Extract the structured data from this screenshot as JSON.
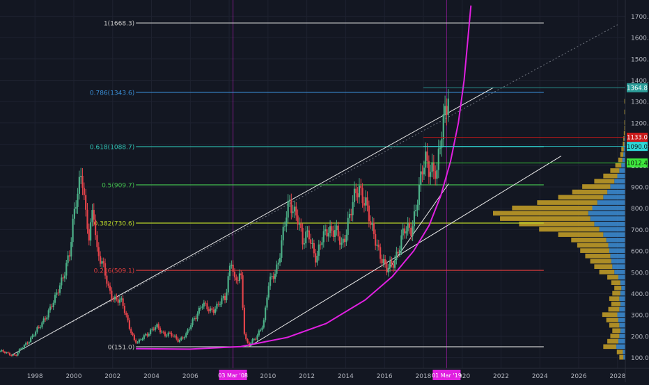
{
  "chart_data": {
    "type": "candlestick",
    "title": "",
    "x_ticks": [
      "1998",
      "2000",
      "2002",
      "2004",
      "2006",
      "2008",
      "2010",
      "2012",
      "2014",
      "2016",
      "2018",
      "2020",
      "2022",
      "2024",
      "2026",
      "2028"
    ],
    "y_ticks": [
      "100.0",
      "200.0",
      "300.0",
      "400.0",
      "500.0",
      "600.0",
      "700.0",
      "800.0",
      "900.0",
      "1000.0",
      "1100.0",
      "1200.0",
      "1300.0",
      "1400.0",
      "1500.0",
      "1600.0",
      "1700.0"
    ],
    "ylim": [
      50,
      1750
    ],
    "xlim": [
      1996.2,
      2028.4
    ],
    "price_series": [
      [
        1996.2,
        130
      ],
      [
        1996.6,
        118
      ],
      [
        1997.0,
        112
      ],
      [
        1997.4,
        150
      ],
      [
        1997.8,
        195
      ],
      [
        1998.2,
        235
      ],
      [
        1998.6,
        305
      ],
      [
        1999.0,
        360
      ],
      [
        1999.4,
        480
      ],
      [
        1999.8,
        580
      ],
      [
        2000.1,
        840
      ],
      [
        2000.4,
        1000
      ],
      [
        2000.6,
        760
      ],
      [
        2000.8,
        640
      ],
      [
        2001.0,
        830
      ],
      [
        2001.2,
        610
      ],
      [
        2001.5,
        520
      ],
      [
        2001.8,
        420
      ],
      [
        2002.1,
        380
      ],
      [
        2002.5,
        350
      ],
      [
        2002.8,
        270
      ],
      [
        2003.1,
        180
      ],
      [
        2003.3,
        165
      ],
      [
        2003.6,
        205
      ],
      [
        2004.0,
        225
      ],
      [
        2004.3,
        245
      ],
      [
        2004.7,
        210
      ],
      [
        2005.0,
        205
      ],
      [
        2005.4,
        185
      ],
      [
        2005.8,
        205
      ],
      [
        2006.2,
        290
      ],
      [
        2006.6,
        345
      ],
      [
        2007.0,
        325
      ],
      [
        2007.4,
        340
      ],
      [
        2007.8,
        380
      ],
      [
        2008.1,
        580
      ],
      [
        2008.3,
        440
      ],
      [
        2008.6,
        490
      ],
      [
        2008.8,
        200
      ],
      [
        2009.0,
        160
      ],
      [
        2009.4,
        190
      ],
      [
        2009.8,
        280
      ],
      [
        2010.0,
        430
      ],
      [
        2010.4,
        500
      ],
      [
        2010.8,
        700
      ],
      [
        2011.1,
        810
      ],
      [
        2011.5,
        790
      ],
      [
        2011.8,
        620
      ],
      [
        2012.1,
        690
      ],
      [
        2012.5,
        560
      ],
      [
        2012.8,
        650
      ],
      [
        2013.1,
        720
      ],
      [
        2013.5,
        680
      ],
      [
        2013.8,
        620
      ],
      [
        2014.1,
        740
      ],
      [
        2014.4,
        820
      ],
      [
        2014.7,
        900
      ],
      [
        2015.0,
        850
      ],
      [
        2015.3,
        700
      ],
      [
        2015.6,
        640
      ],
      [
        2015.9,
        560
      ],
      [
        2016.1,
        500
      ],
      [
        2016.4,
        540
      ],
      [
        2016.7,
        610
      ],
      [
        2017.0,
        680
      ],
      [
        2017.4,
        720
      ],
      [
        2017.8,
        880
      ],
      [
        2018.1,
        1040
      ],
      [
        2018.4,
        1000
      ],
      [
        2018.7,
        940
      ],
      [
        2018.9,
        1120
      ],
      [
        2019.1,
        1280
      ],
      [
        2019.3,
        1365
      ]
    ],
    "fib_levels": [
      {
        "ratio_label": "1(1668.3)",
        "value": 1668.3,
        "color": "#c8c8c8"
      },
      {
        "ratio_label": "0.786(1343.6)",
        "value": 1343.6,
        "color": "#3a8fd8"
      },
      {
        "ratio_label": "0.618(1088.7)",
        "value": 1088.7,
        "color": "#2fc8b8"
      },
      {
        "ratio_label": "0.5(909.7)",
        "value": 909.7,
        "color": "#43c04f"
      },
      {
        "ratio_label": "0.382(730.6)",
        "value": 730.6,
        "color": "#b8d42a"
      },
      {
        "ratio_label": "0.236(509.1)",
        "value": 509.1,
        "color": "#e03c3c"
      },
      {
        "ratio_label": "0(151.0)",
        "value": 151.0,
        "color": "#c8c8c8"
      }
    ],
    "trend_lines": [
      {
        "from": [
          1996.8,
          112
        ],
        "to": [
          2021.6,
          1365
        ],
        "color": "#e8e8e8",
        "style": "solid"
      },
      {
        "from": [
          2009.0,
          150
        ],
        "to": [
          2025.1,
          1045
        ],
        "color": "#e8e8e8",
        "style": "solid"
      },
      {
        "from": [
          2016.1,
          500
        ],
        "to": [
          2019.3,
          915
        ],
        "color": "#e8e8e8",
        "style": "solid"
      },
      {
        "from": [
          1996.8,
          112
        ],
        "to": [
          2028.0,
          1660
        ],
        "color": "#8a8e99",
        "style": "dotted"
      }
    ],
    "parabola": {
      "color": "#e020e0",
      "points": [
        [
          2003.2,
          142
        ],
        [
          2006.0,
          140
        ],
        [
          2008.6,
          152
        ],
        [
          2011.0,
          195
        ],
        [
          2013.0,
          260
        ],
        [
          2015.0,
          370
        ],
        [
          2016.4,
          480
        ],
        [
          2017.5,
          600
        ],
        [
          2018.3,
          720
        ],
        [
          2018.9,
          860
        ],
        [
          2019.4,
          1020
        ],
        [
          2019.8,
          1200
        ],
        [
          2020.1,
          1400
        ],
        [
          2020.3,
          1600
        ],
        [
          2020.45,
          1750
        ]
      ]
    },
    "vertical_markers": [
      {
        "x": 2008.2,
        "label": "03 Mar '08",
        "color": "#e020e0"
      },
      {
        "x": 2019.2,
        "label": "01 Mar '19",
        "color": "#e020e0"
      }
    ],
    "price_labels": [
      {
        "text": "1364.8",
        "value": 1364.8,
        "bg": "#2c9e9a",
        "fg": "#ffffff"
      },
      {
        "text": "1133.0",
        "value": 1133.0,
        "bg": "#c81a1a",
        "fg": "#ffffff"
      },
      {
        "text": "1090.0",
        "value": 1090.0,
        "bg": "#2fd8d8",
        "fg": "#0b1a1a"
      },
      {
        "text": "1012.4",
        "value": 1012.4,
        "bg": "#3ee83e",
        "fg": "#0b1a0b"
      }
    ],
    "volume_profile": {
      "bins": [
        {
          "price": 100,
          "up": 4,
          "down": 8
        },
        {
          "price": 125,
          "up": 5,
          "down": 12
        },
        {
          "price": 150,
          "up": 18,
          "down": 26
        },
        {
          "price": 175,
          "up": 14,
          "down": 22
        },
        {
          "price": 200,
          "up": 12,
          "down": 18
        },
        {
          "price": 225,
          "up": 10,
          "down": 16
        },
        {
          "price": 250,
          "up": 12,
          "down": 20
        },
        {
          "price": 275,
          "up": 14,
          "down": 24
        },
        {
          "price": 300,
          "up": 16,
          "down": 30
        },
        {
          "price": 325,
          "up": 12,
          "down": 22
        },
        {
          "price": 350,
          "up": 10,
          "down": 18
        },
        {
          "price": 375,
          "up": 12,
          "down": 20
        },
        {
          "price": 400,
          "up": 10,
          "down": 16
        },
        {
          "price": 425,
          "up": 8,
          "down": 14
        },
        {
          "price": 450,
          "up": 10,
          "down": 18
        },
        {
          "price": 475,
          "up": 14,
          "down": 22
        },
        {
          "price": 500,
          "up": 22,
          "down": 30
        },
        {
          "price": 525,
          "up": 26,
          "down": 36
        },
        {
          "price": 550,
          "up": 28,
          "down": 42
        },
        {
          "price": 575,
          "up": 30,
          "down": 50
        },
        {
          "price": 600,
          "up": 32,
          "down": 58
        },
        {
          "price": 625,
          "up": 34,
          "down": 62
        },
        {
          "price": 650,
          "up": 38,
          "down": 70
        },
        {
          "price": 675,
          "up": 44,
          "down": 90
        },
        {
          "price": 700,
          "up": 52,
          "down": 120
        },
        {
          "price": 725,
          "up": 62,
          "down": 150
        },
        {
          "price": 750,
          "up": 70,
          "down": 180
        },
        {
          "price": 775,
          "up": 74,
          "down": 190
        },
        {
          "price": 800,
          "up": 66,
          "down": 160
        },
        {
          "price": 825,
          "up": 56,
          "down": 120
        },
        {
          "price": 850,
          "up": 44,
          "down": 90
        },
        {
          "price": 875,
          "up": 36,
          "down": 70
        },
        {
          "price": 900,
          "up": 30,
          "down": 56
        },
        {
          "price": 925,
          "up": 22,
          "down": 40
        },
        {
          "price": 950,
          "up": 16,
          "down": 28
        },
        {
          "price": 975,
          "up": 12,
          "down": 18
        },
        {
          "price": 1000,
          "up": 8,
          "down": 12
        },
        {
          "price": 1025,
          "up": 6,
          "down": 8
        },
        {
          "price": 1050,
          "up": 4,
          "down": 6
        },
        {
          "price": 1075,
          "up": 3,
          "down": 5
        },
        {
          "price": 1100,
          "up": 2,
          "down": 3
        },
        {
          "price": 1125,
          "up": 2,
          "down": 2
        },
        {
          "price": 1150,
          "up": 1,
          "down": 2
        },
        {
          "price": 1175,
          "up": 1,
          "down": 1
        },
        {
          "price": 1200,
          "up": 1,
          "down": 1
        },
        {
          "price": 1250,
          "up": 1,
          "down": 1
        },
        {
          "price": 1300,
          "up": 1,
          "down": 1
        }
      ],
      "up_color": "#3d8fd8",
      "down_color": "#c9a227"
    },
    "colors": {
      "background": "#131722",
      "grid": "#1e2230",
      "axis_text": "#b2b5be",
      "up_candle": "#4caf87",
      "down_candle": "#e2434a"
    }
  }
}
